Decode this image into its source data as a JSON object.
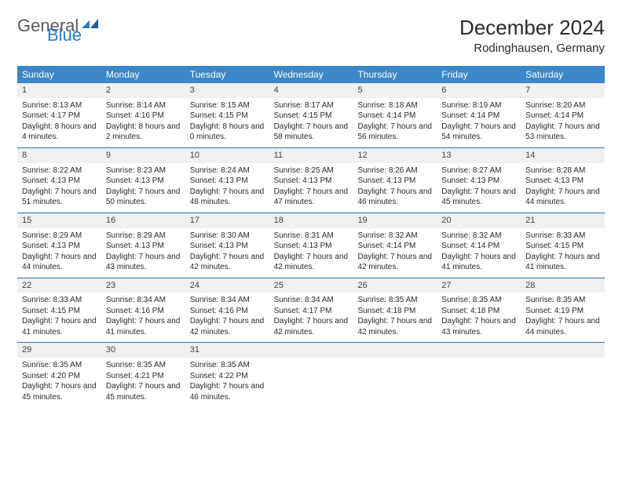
{
  "logo": {
    "word1": "General",
    "word2": "Blue"
  },
  "title": "December 2024",
  "location": "Rodinghausen, Germany",
  "colors": {
    "header_bg": "#3b87c8",
    "header_text": "#ffffff",
    "daynum_bg": "#eef0f1",
    "week_border": "#2b6fa8",
    "text": "#2a2a2a",
    "logo_gray": "#5a5a5a",
    "logo_blue": "#2b7bbf"
  },
  "dow": [
    "Sunday",
    "Monday",
    "Tuesday",
    "Wednesday",
    "Thursday",
    "Friday",
    "Saturday"
  ],
  "weeks": [
    [
      {
        "n": "1",
        "sr": "8:13 AM",
        "ss": "4:17 PM",
        "dl": "8 hours and 4 minutes."
      },
      {
        "n": "2",
        "sr": "8:14 AM",
        "ss": "4:16 PM",
        "dl": "8 hours and 2 minutes."
      },
      {
        "n": "3",
        "sr": "8:15 AM",
        "ss": "4:15 PM",
        "dl": "8 hours and 0 minutes."
      },
      {
        "n": "4",
        "sr": "8:17 AM",
        "ss": "4:15 PM",
        "dl": "7 hours and 58 minutes."
      },
      {
        "n": "5",
        "sr": "8:18 AM",
        "ss": "4:14 PM",
        "dl": "7 hours and 56 minutes."
      },
      {
        "n": "6",
        "sr": "8:19 AM",
        "ss": "4:14 PM",
        "dl": "7 hours and 54 minutes."
      },
      {
        "n": "7",
        "sr": "8:20 AM",
        "ss": "4:14 PM",
        "dl": "7 hours and 53 minutes."
      }
    ],
    [
      {
        "n": "8",
        "sr": "8:22 AM",
        "ss": "4:13 PM",
        "dl": "7 hours and 51 minutes."
      },
      {
        "n": "9",
        "sr": "8:23 AM",
        "ss": "4:13 PM",
        "dl": "7 hours and 50 minutes."
      },
      {
        "n": "10",
        "sr": "8:24 AM",
        "ss": "4:13 PM",
        "dl": "7 hours and 48 minutes."
      },
      {
        "n": "11",
        "sr": "8:25 AM",
        "ss": "4:13 PM",
        "dl": "7 hours and 47 minutes."
      },
      {
        "n": "12",
        "sr": "8:26 AM",
        "ss": "4:13 PM",
        "dl": "7 hours and 46 minutes."
      },
      {
        "n": "13",
        "sr": "8:27 AM",
        "ss": "4:13 PM",
        "dl": "7 hours and 45 minutes."
      },
      {
        "n": "14",
        "sr": "8:28 AM",
        "ss": "4:13 PM",
        "dl": "7 hours and 44 minutes."
      }
    ],
    [
      {
        "n": "15",
        "sr": "8:29 AM",
        "ss": "4:13 PM",
        "dl": "7 hours and 44 minutes."
      },
      {
        "n": "16",
        "sr": "8:29 AM",
        "ss": "4:13 PM",
        "dl": "7 hours and 43 minutes."
      },
      {
        "n": "17",
        "sr": "8:30 AM",
        "ss": "4:13 PM",
        "dl": "7 hours and 42 minutes."
      },
      {
        "n": "18",
        "sr": "8:31 AM",
        "ss": "4:13 PM",
        "dl": "7 hours and 42 minutes."
      },
      {
        "n": "19",
        "sr": "8:32 AM",
        "ss": "4:14 PM",
        "dl": "7 hours and 42 minutes."
      },
      {
        "n": "20",
        "sr": "8:32 AM",
        "ss": "4:14 PM",
        "dl": "7 hours and 41 minutes."
      },
      {
        "n": "21",
        "sr": "8:33 AM",
        "ss": "4:15 PM",
        "dl": "7 hours and 41 minutes."
      }
    ],
    [
      {
        "n": "22",
        "sr": "8:33 AM",
        "ss": "4:15 PM",
        "dl": "7 hours and 41 minutes."
      },
      {
        "n": "23",
        "sr": "8:34 AM",
        "ss": "4:16 PM",
        "dl": "7 hours and 41 minutes."
      },
      {
        "n": "24",
        "sr": "8:34 AM",
        "ss": "4:16 PM",
        "dl": "7 hours and 42 minutes."
      },
      {
        "n": "25",
        "sr": "8:34 AM",
        "ss": "4:17 PM",
        "dl": "7 hours and 42 minutes."
      },
      {
        "n": "26",
        "sr": "8:35 AM",
        "ss": "4:18 PM",
        "dl": "7 hours and 42 minutes."
      },
      {
        "n": "27",
        "sr": "8:35 AM",
        "ss": "4:18 PM",
        "dl": "7 hours and 43 minutes."
      },
      {
        "n": "28",
        "sr": "8:35 AM",
        "ss": "4:19 PM",
        "dl": "7 hours and 44 minutes."
      }
    ],
    [
      {
        "n": "29",
        "sr": "8:35 AM",
        "ss": "4:20 PM",
        "dl": "7 hours and 45 minutes."
      },
      {
        "n": "30",
        "sr": "8:35 AM",
        "ss": "4:21 PM",
        "dl": "7 hours and 45 minutes."
      },
      {
        "n": "31",
        "sr": "8:35 AM",
        "ss": "4:22 PM",
        "dl": "7 hours and 46 minutes."
      },
      null,
      null,
      null,
      null
    ]
  ],
  "labels": {
    "sunrise": "Sunrise: ",
    "sunset": "Sunset: ",
    "daylight": "Daylight: "
  }
}
